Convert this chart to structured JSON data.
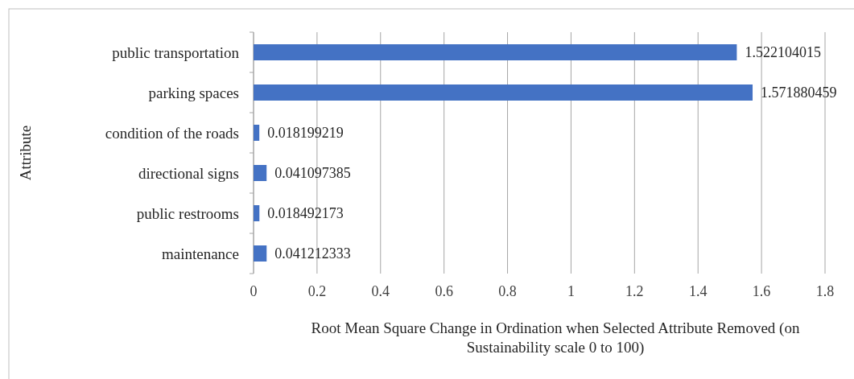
{
  "chart_data": {
    "type": "bar",
    "orientation": "horizontal",
    "xlabel": "Root Mean Square Change in Ordination when Selected Attribute Removed (on Sustainability scale 0 to 100)",
    "ylabel": "Attribute",
    "categories": [
      "public transportation",
      "parking spaces",
      "condition of the roads",
      "directional signs",
      "public restrooms",
      "maintenance"
    ],
    "values": [
      1.522104015,
      1.571880459,
      0.018199219,
      0.041097385,
      0.018492173,
      0.041212333
    ],
    "color": "#4472c4",
    "xlim": [
      0,
      1.8
    ],
    "xticks": [
      0,
      0.2,
      0.4,
      0.6,
      0.8,
      1,
      1.2,
      1.4,
      1.6,
      1.8
    ],
    "grid": "x",
    "data_labels": true
  }
}
